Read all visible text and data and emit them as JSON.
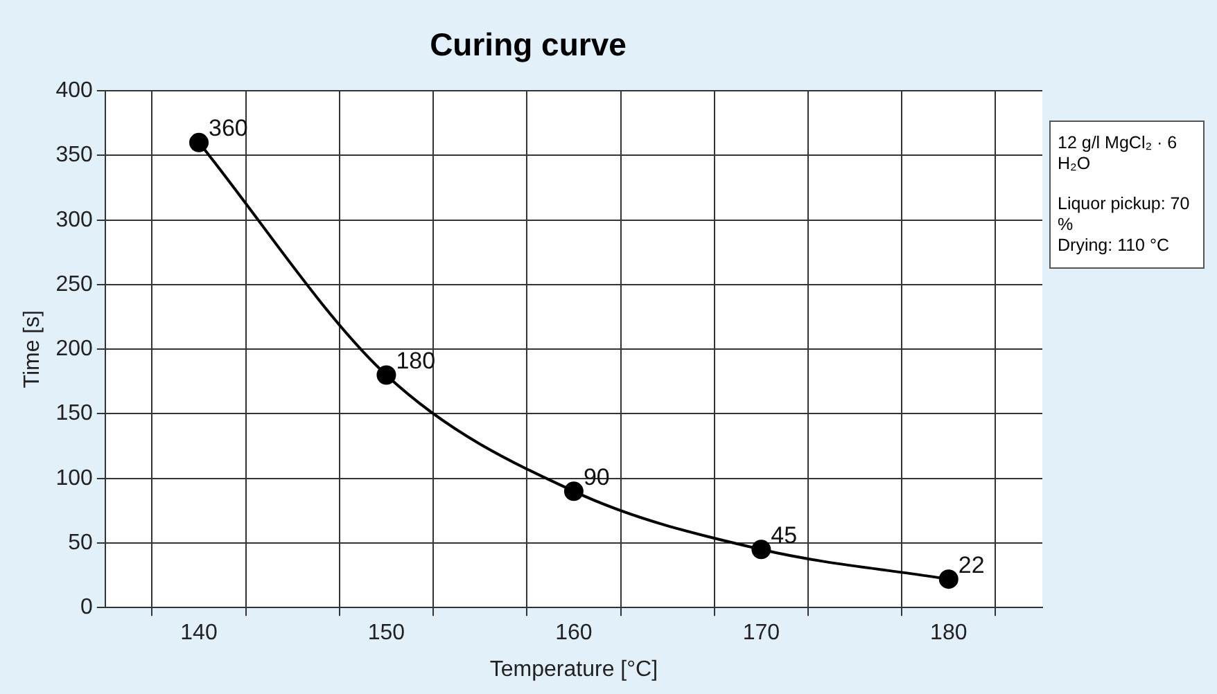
{
  "chart_data": {
    "type": "line",
    "title": "Curing curve",
    "xlabel": "Temperature [°C]",
    "ylabel": "Time [s]",
    "x": [
      140,
      150,
      160,
      170,
      180
    ],
    "series": [
      {
        "color": "#000000",
        "values": [
          360,
          180,
          90,
          45,
          22
        ]
      }
    ],
    "xlim": [
      135,
      185
    ],
    "xticks": [
      {
        "value": 137.5,
        "label": null
      },
      140,
      {
        "value": 142.5,
        "label": null
      },
      {
        "value": 147.5,
        "label": null
      },
      150,
      {
        "value": 152.5,
        "label": null
      },
      {
        "value": 157.5,
        "label": null
      },
      160,
      {
        "value": 162.5,
        "label": null
      },
      {
        "value": 167.5,
        "label": null
      },
      170,
      {
        "value": 172.5,
        "label": null
      },
      {
        "value": 177.5,
        "label": null
      },
      180,
      {
        "value": 182.5,
        "label": null
      }
    ],
    "ylim": [
      0,
      400
    ],
    "yticks": [
      0,
      50,
      100,
      150,
      200,
      250,
      300,
      350,
      400
    ],
    "grid": true,
    "marker": "circle",
    "line_style": "solid",
    "data_labels": true,
    "legend": false,
    "annotations": [
      "12 g/l MgCl₂ · 6 H₂O",
      "Liquor pickup: 70 %",
      "Drying: 110 °C"
    ]
  }
}
